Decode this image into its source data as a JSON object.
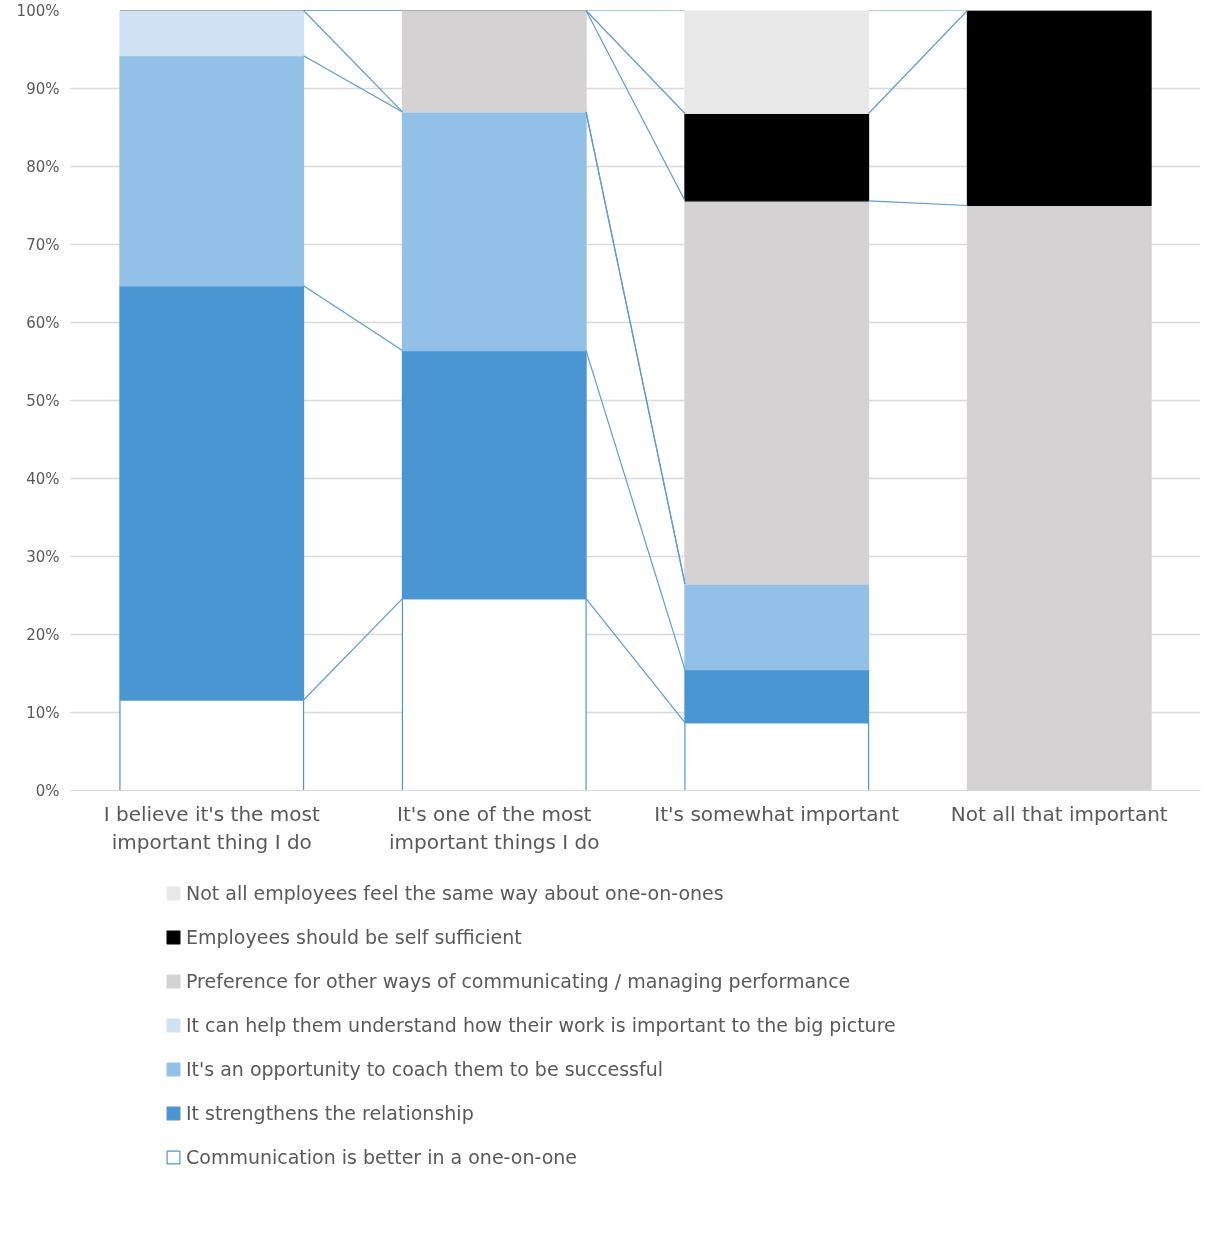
{
  "chart_data": {
    "type": "bar",
    "stacked": true,
    "categories": [
      "I believe it's the most important thing I do",
      "It's one of the most important things I do",
      "It's somewhat important",
      "Not all that important"
    ],
    "series": [
      {
        "name": "Communication is better in a one-on-one",
        "color": "#ffffff",
        "values": [
          11.6,
          24.6,
          8.7,
          0
        ]
      },
      {
        "name": "It strengthens the relationship",
        "color": "#4a96d2",
        "values": [
          53.1,
          31.8,
          6.8,
          0
        ]
      },
      {
        "name": "It's an opportunity to coach them to be successful",
        "color": "#93c0e6",
        "values": [
          29.5,
          30.6,
          11.0,
          0
        ]
      },
      {
        "name": "It can help them understand how their work is important to the big picture",
        "color": "#cfe2f3",
        "values": [
          5.8,
          0,
          0,
          0
        ]
      },
      {
        "name": "Preference for other ways of communicating / managing performance",
        "color": "#d4d2d3",
        "values": [
          0,
          13.0,
          49.1,
          75
        ]
      },
      {
        "name": "Employees should be self sufficient",
        "color": "#000000",
        "values": [
          0,
          0,
          11.2,
          25
        ]
      },
      {
        "name": "Not all employees feel the same way about one-on-ones",
        "color": "#e8e8e8",
        "values": [
          0,
          0,
          13.2,
          0
        ]
      }
    ],
    "ylim": [
      0,
      100
    ],
    "yticks": [
      {
        "value": 0,
        "label": "0%"
      },
      {
        "value": 10,
        "label": "10%"
      },
      {
        "value": 20,
        "label": "20%"
      },
      {
        "value": 30,
        "label": "30%"
      },
      {
        "value": 40,
        "label": "40%"
      },
      {
        "value": 50,
        "label": "50%"
      },
      {
        "value": 60,
        "label": "60%"
      },
      {
        "value": 70,
        "label": "70%"
      },
      {
        "value": 80,
        "label": "80%"
      },
      {
        "value": 90,
        "label": "90%"
      },
      {
        "value": 100,
        "label": "100%"
      }
    ],
    "grid": "y",
    "legend": "bottom"
  }
}
